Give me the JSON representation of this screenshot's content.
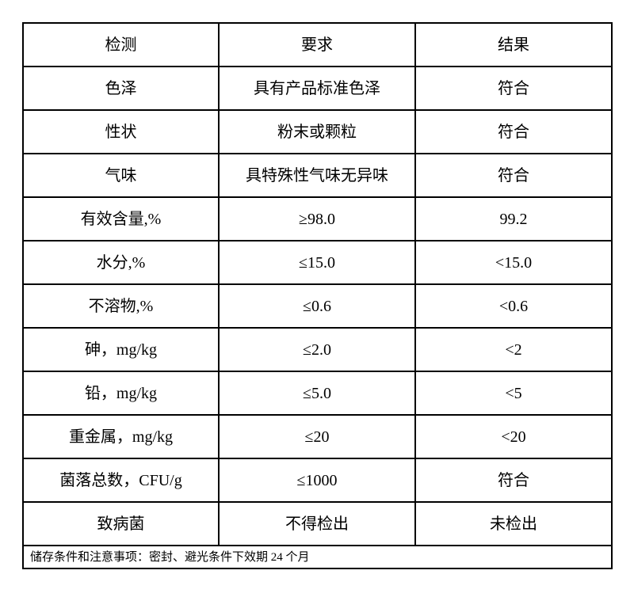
{
  "table": {
    "headers": {
      "item": "检测",
      "requirement": "要求",
      "result": "结果"
    },
    "rows": [
      {
        "item": "色泽",
        "requirement": "具有产品标准色泽",
        "result": "符合"
      },
      {
        "item": "性状",
        "requirement": "粉末或颗粒",
        "result": "符合"
      },
      {
        "item": "气味",
        "requirement": "具特殊性气味无异味",
        "result": "符合"
      },
      {
        "item": "有效含量,%",
        "requirement": "≥98.0",
        "result": "99.2"
      },
      {
        "item": "水分,%",
        "requirement": "≤15.0",
        "result": "<15.0"
      },
      {
        "item": "不溶物,%",
        "requirement": "≤0.6",
        "result": "<0.6"
      },
      {
        "item": "砷，mg/kg",
        "requirement": "≤2.0",
        "result": "<2"
      },
      {
        "item": "铅，mg/kg",
        "requirement": "≤5.0",
        "result": "<5"
      },
      {
        "item": "重金属，mg/kg",
        "requirement": "≤20",
        "result": "<20"
      },
      {
        "item": "菌落总数，CFU/g",
        "requirement": "≤1000",
        "result": "符合"
      },
      {
        "item": "致病菌",
        "requirement": "不得检出",
        "result": "未检出"
      }
    ],
    "footer": "储存条件和注意事项：密封、避光条件下效期 24 个月"
  }
}
